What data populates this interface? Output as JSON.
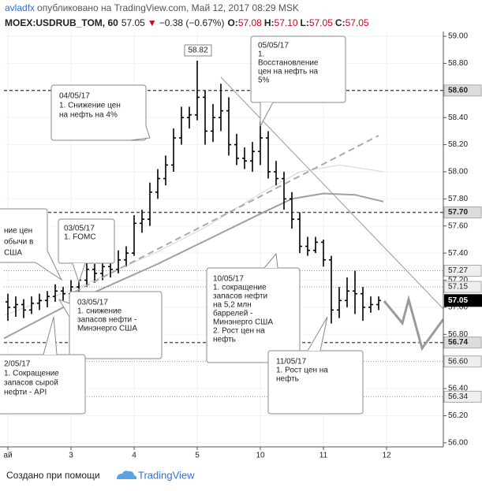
{
  "header": {
    "author": "avladfx",
    "published": "опубликовано на TradingView.com, Май 12, 2017 08:29 MSK",
    "symbol": "MOEX:USDRUB_TOM, 60",
    "price": "57.05",
    "arrow": "▼",
    "change": "−0.38 (−0.67%)",
    "ohlc": [
      {
        "key": "O:",
        "value": "57.08"
      },
      {
        "key": "H:",
        "value": "57.10"
      },
      {
        "key": "L:",
        "value": "57.05"
      },
      {
        "key": "C:",
        "value": "57.05"
      }
    ]
  },
  "chart_data": {
    "type": "ohlc",
    "color": "#000000",
    "x": [
      0,
      0.125,
      0.25,
      0.375,
      0.5,
      0.625,
      0.75,
      0.875,
      1,
      1.125,
      1.25,
      1.375,
      1.5,
      1.625,
      1.75,
      1.875,
      2,
      2.125,
      2.25,
      2.375,
      2.5,
      2.625,
      2.75,
      2.875,
      3,
      3.125,
      3.25,
      3.375,
      3.5,
      3.625,
      3.75,
      3.875,
      4,
      4.125,
      4.25,
      4.375,
      4.5,
      4.625,
      4.75,
      4.875,
      5,
      5.125,
      5.25,
      5.375,
      5.5,
      5.625,
      5.75,
      5.875
    ],
    "open": [
      57.04,
      57.0,
      57.02,
      56.98,
      57.03,
      57.05,
      57.08,
      57.12,
      57.1,
      57.15,
      57.2,
      57.28,
      57.25,
      57.3,
      57.28,
      57.35,
      57.4,
      57.62,
      57.65,
      57.85,
      57.95,
      58.05,
      58.25,
      58.4,
      58.42,
      58.55,
      58.3,
      58.4,
      58.45,
      58.2,
      58.1,
      58.08,
      58.15,
      58.25,
      58.0,
      57.95,
      57.8,
      57.65,
      57.45,
      57.42,
      57.48,
      57.35,
      56.98,
      57.05,
      57.12,
      57.1,
      57.0,
      57.02
    ],
    "high": [
      57.1,
      57.08,
      57.06,
      57.08,
      57.1,
      57.12,
      57.17,
      57.15,
      57.2,
      57.25,
      57.35,
      57.32,
      57.36,
      57.34,
      57.42,
      57.45,
      57.68,
      57.72,
      57.92,
      58.02,
      58.12,
      58.32,
      58.48,
      58.48,
      58.82,
      58.6,
      58.5,
      58.65,
      58.55,
      58.28,
      58.18,
      58.22,
      58.37,
      58.3,
      58.08,
      58.0,
      57.85,
      57.7,
      57.52,
      57.52,
      57.5,
      57.38,
      57.15,
      57.22,
      57.27,
      57.15,
      57.08,
      57.08
    ],
    "low": [
      56.9,
      56.93,
      56.92,
      56.95,
      56.98,
      57.0,
      57.04,
      57.05,
      57.06,
      57.1,
      57.15,
      57.18,
      57.2,
      57.22,
      57.25,
      57.3,
      57.38,
      57.55,
      57.6,
      57.8,
      57.9,
      58.0,
      58.2,
      58.32,
      58.38,
      58.2,
      58.22,
      58.3,
      58.12,
      58.05,
      58.02,
      58.0,
      58.05,
      57.95,
      57.9,
      57.72,
      57.58,
      57.4,
      57.38,
      57.4,
      57.3,
      56.88,
      56.92,
      57.0,
      56.95,
      56.9,
      56.96,
      56.98
    ],
    "close": [
      57.0,
      57.02,
      56.98,
      57.03,
      57.05,
      57.08,
      57.12,
      57.1,
      57.15,
      57.2,
      57.28,
      57.25,
      57.3,
      57.28,
      57.35,
      57.4,
      57.62,
      57.65,
      57.85,
      57.95,
      58.05,
      58.25,
      58.4,
      58.42,
      58.55,
      58.3,
      58.4,
      58.45,
      58.2,
      58.1,
      58.08,
      58.15,
      58.25,
      58.0,
      57.95,
      57.8,
      57.65,
      57.45,
      57.42,
      57.48,
      57.35,
      56.98,
      57.05,
      57.12,
      57.1,
      57.0,
      57.02,
      57.05
    ],
    "indicators": [
      {
        "color": "#a0a0a0",
        "x": [
          -0.0625,
          1.125,
          2.375,
          3.125,
          4,
          4.5,
          5,
          5.5,
          5.95
        ],
        "values": [
          56.77,
          57.06,
          57.32,
          57.49,
          57.69,
          57.8,
          57.84,
          57.83,
          57.78
        ]
      },
      {
        "color": "#d4d4d4",
        "x": [
          -0.0625,
          1.125,
          2.375,
          3.125,
          4,
          4.625,
          5.25,
          5.9625
        ],
        "values": [
          56.94,
          57.15,
          57.41,
          57.59,
          57.84,
          58.0,
          58.05,
          58.0
        ]
      }
    ],
    "xlim": [
      -0.0625,
      6.9
    ],
    "xticks": [
      {
        "value": 0,
        "label": "ай"
      },
      {
        "value": 1,
        "label": "3"
      },
      {
        "value": 2,
        "label": "4"
      },
      {
        "value": 3,
        "label": "5"
      },
      {
        "value": 4,
        "label": "10"
      },
      {
        "value": 5,
        "label": "11"
      },
      {
        "value": 6,
        "label": "12"
      }
    ],
    "ylim": [
      55.97,
      59.035
    ],
    "yticks": [
      {
        "value": 59,
        "label": "59.00"
      },
      {
        "value": 58.8,
        "label": "58.80"
      },
      {
        "value": 58.4,
        "label": "58.40"
      },
      {
        "value": 58.2,
        "label": "58.20"
      },
      {
        "value": 58,
        "label": "58.00"
      },
      {
        "value": 57.8,
        "label": "57.80"
      },
      {
        "value": 57.6,
        "label": "57.60"
      },
      {
        "value": 57.4,
        "label": "57.40"
      },
      {
        "value": 57.2,
        "label": "57.20"
      },
      {
        "value": 57,
        "label": "57.00"
      },
      {
        "value": 56.8,
        "label": "56.80"
      },
      {
        "value": 56.4,
        "label": "56.40"
      },
      {
        "value": 56.2,
        "label": "56.20"
      },
      {
        "value": 56,
        "label": "56.00"
      }
    ],
    "levels": [
      {
        "value": 58.6,
        "label": "58.60",
        "style": "dashed"
      },
      {
        "value": 57.7,
        "label": "57.70",
        "style": "dashed"
      },
      {
        "value": 57.27,
        "label": "57.27",
        "style": "dotted"
      },
      {
        "value": 57.15,
        "label": "57.15",
        "style": "dotted"
      },
      {
        "value": 56.74,
        "label": "56.74",
        "style": "dashed"
      },
      {
        "value": 56.6,
        "label": "56.60",
        "style": "dotted"
      },
      {
        "value": 56.34,
        "label": "56.34",
        "style": "dotted"
      }
    ],
    "last": {
      "value": 57.05,
      "label": "57.05"
    },
    "peak_label": 58.82,
    "grid": true
  },
  "callouts": [
    {
      "lines": [
        "04/05/17",
        "1. Снижение цен",
        "на нефть на 4%"
      ]
    },
    {
      "lines": [
        "05/05/17",
        "1.",
        "Восстановление",
        "цен на нефть на",
        "5%"
      ]
    },
    {
      "lines": [
        "03/05/17",
        "1. FOMC"
      ]
    },
    {
      "lines": [
        "ние цен",
        "обычи в",
        "США"
      ]
    },
    {
      "lines": [
        "03/05/17",
        "1. снижение",
        "запасов нефти -",
        "Минэнерго США"
      ]
    },
    {
      "lines": [
        "10/05/17",
        "1. сокращение",
        "запасов нефти",
        "на 5,2 млн",
        "баррелей -",
        "Минэнерго США",
        "2. Рост цен на",
        "нефть"
      ]
    },
    {
      "lines": [
        "11/05/17",
        "1. Рост цен на",
        "нефть"
      ]
    },
    {
      "lines": [
        "2/05/17",
        "1. Сокращение",
        "запасов сырой",
        "нефти - API"
      ]
    }
  ],
  "footer": {
    "text": "Создано при помощи",
    "brand": "TradingView"
  }
}
